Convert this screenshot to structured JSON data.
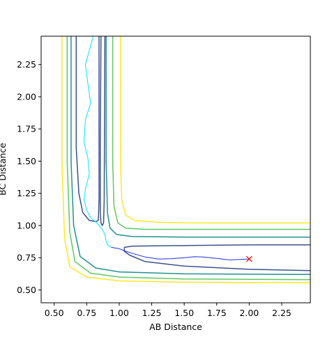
{
  "chart_data": {
    "type": "line",
    "title": "",
    "xlabel": "AB Distance",
    "ylabel": "BC Distance",
    "xlim": [
      0.4,
      2.47
    ],
    "ylim": [
      0.4,
      2.47
    ],
    "grid": false,
    "xticks": [
      0.5,
      0.75,
      1.0,
      1.25,
      1.5,
      1.75,
      2.0,
      2.25
    ],
    "xtick_labels": [
      "0.50",
      "0.75",
      "1.00",
      "1.25",
      "1.50",
      "1.75",
      "2.00",
      "2.25"
    ],
    "yticks": [
      0.5,
      0.75,
      1.0,
      1.25,
      1.5,
      1.75,
      2.0,
      2.25
    ],
    "ytick_labels": [
      "0.50",
      "0.75",
      "1.00",
      "1.25",
      "1.50",
      "1.75",
      "2.00",
      "2.25"
    ],
    "contours": [
      {
        "color": "#fde725",
        "points": [
          [
            0.56,
            2.47
          ],
          [
            0.56,
            1.5
          ],
          [
            0.58,
            0.9
          ],
          [
            0.62,
            0.68
          ],
          [
            0.75,
            0.6
          ],
          [
            1.0,
            0.57
          ],
          [
            1.5,
            0.56
          ],
          [
            2.47,
            0.555
          ]
        ]
      },
      {
        "color": "#5ec962",
        "points": [
          [
            0.6,
            2.47
          ],
          [
            0.6,
            1.5
          ],
          [
            0.62,
            0.95
          ],
          [
            0.66,
            0.72
          ],
          [
            0.78,
            0.63
          ],
          [
            1.0,
            0.6
          ],
          [
            1.5,
            0.585
          ],
          [
            2.47,
            0.58
          ]
        ]
      },
      {
        "color": "#21918c",
        "points": [
          [
            0.63,
            2.47
          ],
          [
            0.63,
            1.5
          ],
          [
            0.65,
            1.0
          ],
          [
            0.7,
            0.76
          ],
          [
            0.82,
            0.67
          ],
          [
            1.0,
            0.64
          ],
          [
            1.5,
            0.625
          ],
          [
            2.47,
            0.62
          ]
        ]
      },
      {
        "color": "#3b528b",
        "points": [
          [
            0.67,
            2.47
          ],
          [
            0.67,
            1.6
          ],
          [
            0.69,
            1.25
          ],
          [
            0.72,
            1.1
          ],
          [
            0.77,
            1.04
          ],
          [
            0.82,
            1.03
          ],
          [
            0.84,
            1.04
          ],
          [
            0.845,
            1.2
          ],
          [
            0.845,
            2.47
          ]
        ]
      },
      {
        "color": "#3b528b",
        "points": [
          [
            0.86,
            2.47
          ],
          [
            0.855,
            1.6
          ],
          [
            0.855,
            1.1
          ],
          [
            0.86,
            1.02
          ],
          [
            0.87,
            1.0
          ],
          [
            0.88,
            1.02
          ],
          [
            0.885,
            1.2
          ],
          [
            0.89,
            2.47
          ]
        ]
      },
      {
        "color": "#3b528b",
        "points": [
          [
            2.47,
            0.85
          ],
          [
            2.0,
            0.85
          ],
          [
            1.5,
            0.845
          ],
          [
            1.1,
            0.84
          ],
          [
            1.04,
            0.83
          ],
          [
            1.04,
            0.8
          ],
          [
            1.08,
            0.77
          ],
          [
            1.2,
            0.72
          ],
          [
            1.5,
            0.685
          ],
          [
            2.0,
            0.66
          ],
          [
            2.47,
            0.65
          ]
        ]
      },
      {
        "color": "#21918c",
        "points": [
          [
            0.9,
            2.47
          ],
          [
            0.9,
            1.5
          ],
          [
            0.91,
            1.1
          ],
          [
            0.93,
            0.98
          ],
          [
            0.98,
            0.93
          ],
          [
            1.1,
            0.915
          ],
          [
            1.5,
            0.91
          ],
          [
            2.47,
            0.91
          ]
        ]
      },
      {
        "color": "#5ec962",
        "points": [
          [
            0.95,
            2.47
          ],
          [
            0.95,
            1.5
          ],
          [
            0.96,
            1.15
          ],
          [
            0.99,
            1.02
          ],
          [
            1.05,
            0.98
          ],
          [
            1.2,
            0.97
          ],
          [
            1.5,
            0.97
          ],
          [
            2.47,
            0.97
          ]
        ]
      },
      {
        "color": "#fde725",
        "points": [
          [
            1.01,
            2.47
          ],
          [
            1.01,
            1.5
          ],
          [
            1.02,
            1.2
          ],
          [
            1.05,
            1.08
          ],
          [
            1.12,
            1.04
          ],
          [
            1.3,
            1.025
          ],
          [
            1.6,
            1.02
          ],
          [
            2.47,
            1.02
          ]
        ]
      }
    ],
    "trajectories": [
      {
        "color": "#00e5ff",
        "points": [
          [
            0.8,
            2.47
          ],
          [
            0.76,
            2.32
          ],
          [
            0.74,
            2.25
          ],
          [
            0.76,
            2.1
          ],
          [
            0.78,
            1.95
          ],
          [
            0.74,
            1.82
          ],
          [
            0.73,
            1.65
          ],
          [
            0.76,
            1.52
          ],
          [
            0.77,
            1.4
          ],
          [
            0.74,
            1.28
          ],
          [
            0.73,
            1.2
          ],
          [
            0.75,
            1.12
          ],
          [
            0.78,
            1.06
          ],
          [
            0.83,
            1.02
          ],
          [
            0.87,
            0.97
          ],
          [
            0.89,
            0.93
          ],
          [
            0.9,
            0.88
          ],
          [
            0.91,
            0.85
          ],
          [
            0.94,
            0.83
          ]
        ]
      },
      {
        "color": "#1f2fe0",
        "points": [
          [
            0.94,
            0.83
          ],
          [
            1.0,
            0.82
          ],
          [
            1.05,
            0.8
          ],
          [
            1.1,
            0.785
          ],
          [
            1.2,
            0.755
          ],
          [
            1.3,
            0.74
          ],
          [
            1.4,
            0.742
          ],
          [
            1.5,
            0.75
          ],
          [
            1.58,
            0.758
          ],
          [
            1.65,
            0.755
          ],
          [
            1.75,
            0.745
          ],
          [
            1.85,
            0.733
          ],
          [
            1.95,
            0.738
          ],
          [
            2.0,
            0.74
          ]
        ]
      }
    ],
    "marker": {
      "x": 2.0,
      "y": 0.74,
      "symbol": "x",
      "color": "#ff0000"
    }
  }
}
